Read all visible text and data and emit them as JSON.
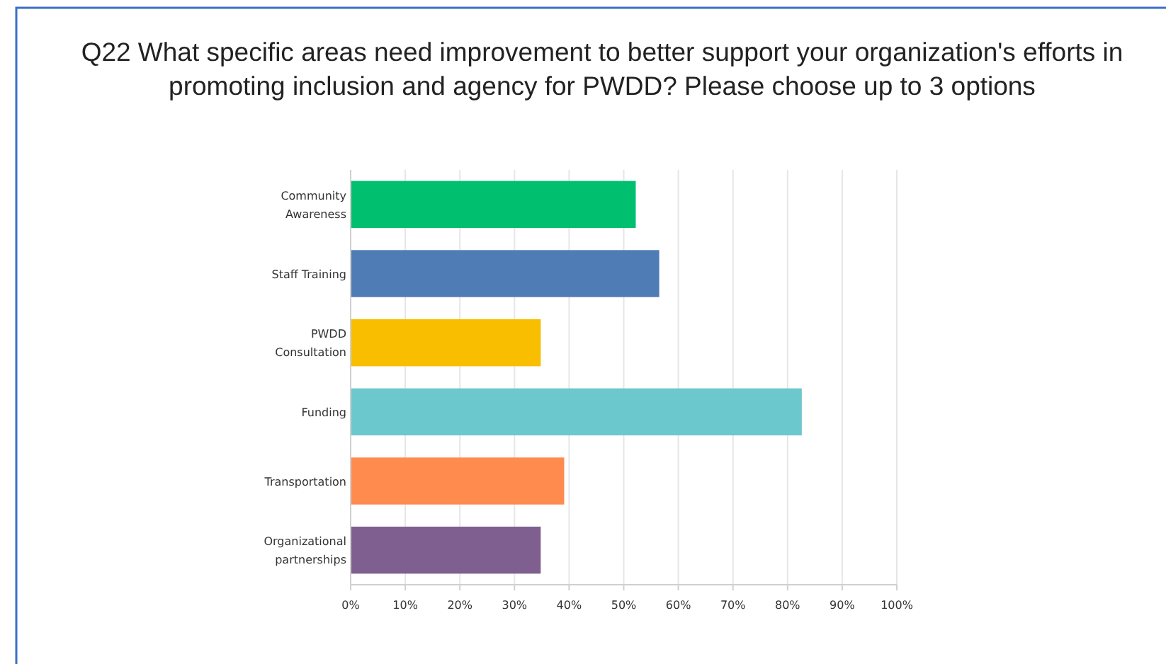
{
  "chart_data": {
    "type": "bar",
    "orientation": "horizontal",
    "title": "Q22 What specific areas need improvement to better support your organization's efforts in promoting inclusion and agency for PWDD? Please choose up to 3 options",
    "categories": [
      "Community Awareness",
      "Staff Training",
      "PWDD Consultation",
      "Funding",
      "Transportation",
      "Organizational partnerships"
    ],
    "values": [
      52.2,
      56.5,
      34.8,
      82.6,
      39.1,
      34.8
    ],
    "colors": [
      "#00bf6f",
      "#507cb6",
      "#f9be00",
      "#6bc8cd",
      "#ff8b4f",
      "#7f5f90"
    ],
    "xlim": [
      0,
      100
    ],
    "xticks": [
      {
        "value": 0,
        "label": "0%"
      },
      {
        "value": 10,
        "label": "10%"
      },
      {
        "value": 20,
        "label": "20%"
      },
      {
        "value": 30,
        "label": "30%"
      },
      {
        "value": 40,
        "label": "40%"
      },
      {
        "value": 50,
        "label": "50%"
      },
      {
        "value": 60,
        "label": "60%"
      },
      {
        "value": 70,
        "label": "70%"
      },
      {
        "value": 80,
        "label": "80%"
      },
      {
        "value": 90,
        "label": "90%"
      },
      {
        "value": 100,
        "label": "100%"
      }
    ],
    "grid": "x"
  }
}
